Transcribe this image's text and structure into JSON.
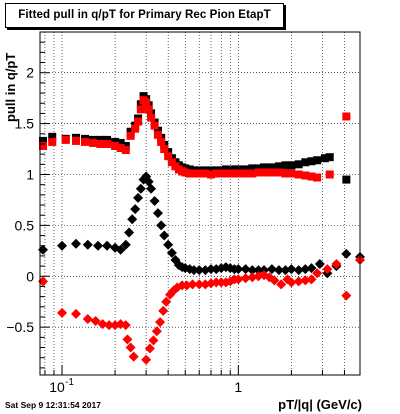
{
  "chart_data": {
    "type": "scatter",
    "title": "Fitted pull in q/pT for Primary Rec Pion EtapT",
    "xlabel": "pT/|q| (GeV/c)",
    "ylabel": "pull in q/pT",
    "x_scale": "log",
    "xlim": [
      0.075,
      4.9
    ],
    "ylim": [
      -0.97,
      2.4
    ],
    "grid": true,
    "x_tick_labels": [
      {
        "value": 0.1,
        "label": "10",
        "exp": "-1"
      },
      {
        "value": 1,
        "label": "1",
        "exp": ""
      }
    ],
    "y_ticks": [
      -0.5,
      0,
      0.5,
      1,
      1.5,
      2
    ],
    "y_tick_labels": [
      "−0.5",
      "0",
      "0.5",
      "1",
      "1.5",
      "2"
    ],
    "series": [
      {
        "color": "#000000",
        "marker": "square",
        "points": [
          [
            0.078,
            1.33
          ],
          [
            0.088,
            1.37
          ],
          [
            0.105,
            1.35
          ],
          [
            0.12,
            1.36
          ],
          [
            0.135,
            1.35
          ],
          [
            0.15,
            1.34
          ],
          [
            0.165,
            1.34
          ],
          [
            0.18,
            1.34
          ],
          [
            0.2,
            1.32
          ],
          [
            0.215,
            1.31
          ],
          [
            0.23,
            1.28
          ],
          [
            0.245,
            1.42
          ],
          [
            0.26,
            1.48
          ],
          [
            0.27,
            1.55
          ],
          [
            0.28,
            1.69
          ],
          [
            0.29,
            1.77
          ],
          [
            0.3,
            1.74
          ],
          [
            0.31,
            1.68
          ],
          [
            0.32,
            1.6
          ],
          [
            0.335,
            1.51
          ],
          [
            0.35,
            1.43
          ],
          [
            0.365,
            1.36
          ],
          [
            0.38,
            1.29
          ],
          [
            0.4,
            1.22
          ],
          [
            0.42,
            1.16
          ],
          [
            0.44,
            1.12
          ],
          [
            0.46,
            1.09
          ],
          [
            0.48,
            1.07
          ],
          [
            0.5,
            1.06
          ],
          [
            0.53,
            1.05
          ],
          [
            0.56,
            1.04
          ],
          [
            0.6,
            1.04
          ],
          [
            0.65,
            1.04
          ],
          [
            0.7,
            1.04
          ],
          [
            0.75,
            1.04
          ],
          [
            0.8,
            1.04
          ],
          [
            0.85,
            1.05
          ],
          [
            0.9,
            1.04
          ],
          [
            0.95,
            1.05
          ],
          [
            1.0,
            1.05
          ],
          [
            1.1,
            1.05
          ],
          [
            1.2,
            1.06
          ],
          [
            1.3,
            1.06
          ],
          [
            1.4,
            1.07
          ],
          [
            1.55,
            1.07
          ],
          [
            1.7,
            1.08
          ],
          [
            1.85,
            1.09
          ],
          [
            2.0,
            1.09
          ],
          [
            2.2,
            1.1
          ],
          [
            2.4,
            1.12
          ],
          [
            2.6,
            1.13
          ],
          [
            2.8,
            1.14
          ],
          [
            3.1,
            1.16
          ],
          [
            3.3,
            1.17
          ],
          [
            4.1,
            0.95
          ]
        ]
      },
      {
        "color": "#ff0000",
        "marker": "square",
        "points": [
          [
            0.078,
            1.28
          ],
          [
            0.088,
            1.32
          ],
          [
            0.105,
            1.34
          ],
          [
            0.12,
            1.33
          ],
          [
            0.135,
            1.32
          ],
          [
            0.15,
            1.31
          ],
          [
            0.165,
            1.3
          ],
          [
            0.18,
            1.3
          ],
          [
            0.2,
            1.28
          ],
          [
            0.215,
            1.26
          ],
          [
            0.23,
            1.24
          ],
          [
            0.245,
            1.38
          ],
          [
            0.26,
            1.45
          ],
          [
            0.27,
            1.52
          ],
          [
            0.28,
            1.64
          ],
          [
            0.29,
            1.73
          ],
          [
            0.3,
            1.71
          ],
          [
            0.31,
            1.64
          ],
          [
            0.32,
            1.56
          ],
          [
            0.335,
            1.48
          ],
          [
            0.35,
            1.39
          ],
          [
            0.365,
            1.32
          ],
          [
            0.38,
            1.25
          ],
          [
            0.4,
            1.18
          ],
          [
            0.42,
            1.12
          ],
          [
            0.44,
            1.08
          ],
          [
            0.46,
            1.05
          ],
          [
            0.48,
            1.03
          ],
          [
            0.5,
            1.02
          ],
          [
            0.53,
            1.01
          ],
          [
            0.56,
            1.01
          ],
          [
            0.6,
            1.01
          ],
          [
            0.65,
            1.01
          ],
          [
            0.7,
            1.0
          ],
          [
            0.75,
            1.01
          ],
          [
            0.8,
            1.01
          ],
          [
            0.85,
            1.01
          ],
          [
            0.9,
            1.01
          ],
          [
            0.95,
            1.01
          ],
          [
            1.0,
            1.01
          ],
          [
            1.1,
            1.01
          ],
          [
            1.2,
            1.01
          ],
          [
            1.3,
            1.02
          ],
          [
            1.4,
            1.02
          ],
          [
            1.55,
            1.02
          ],
          [
            1.7,
            1.02
          ],
          [
            1.85,
            1.01
          ],
          [
            2.0,
            1.01
          ],
          [
            2.2,
            1.0
          ],
          [
            2.4,
            0.99
          ],
          [
            2.6,
            0.98
          ],
          [
            2.8,
            0.97
          ],
          [
            3.3,
            1.0
          ],
          [
            4.1,
            1.57
          ]
        ]
      },
      {
        "color": "#000000",
        "marker": "diamond",
        "points": [
          [
            0.078,
            0.26
          ],
          [
            0.1,
            0.3
          ],
          [
            0.12,
            0.32
          ],
          [
            0.14,
            0.31
          ],
          [
            0.16,
            0.3
          ],
          [
            0.18,
            0.3
          ],
          [
            0.2,
            0.28
          ],
          [
            0.215,
            0.26
          ],
          [
            0.23,
            0.31
          ],
          [
            0.24,
            0.43
          ],
          [
            0.25,
            0.56
          ],
          [
            0.26,
            0.66
          ],
          [
            0.27,
            0.77
          ],
          [
            0.28,
            0.86
          ],
          [
            0.29,
            0.95
          ],
          [
            0.3,
            0.98
          ],
          [
            0.31,
            0.93
          ],
          [
            0.32,
            0.86
          ],
          [
            0.335,
            0.74
          ],
          [
            0.35,
            0.62
          ],
          [
            0.365,
            0.5
          ],
          [
            0.38,
            0.4
          ],
          [
            0.4,
            0.31
          ],
          [
            0.42,
            0.23
          ],
          [
            0.44,
            0.16
          ],
          [
            0.46,
            0.11
          ],
          [
            0.48,
            0.09
          ],
          [
            0.5,
            0.08
          ],
          [
            0.53,
            0.07
          ],
          [
            0.56,
            0.06
          ],
          [
            0.6,
            0.06
          ],
          [
            0.65,
            0.06
          ],
          [
            0.7,
            0.07
          ],
          [
            0.75,
            0.07
          ],
          [
            0.8,
            0.08
          ],
          [
            0.85,
            0.09
          ],
          [
            0.9,
            0.08
          ],
          [
            0.95,
            0.07
          ],
          [
            1.0,
            0.07
          ],
          [
            1.1,
            0.07
          ],
          [
            1.2,
            0.06
          ],
          [
            1.3,
            0.06
          ],
          [
            1.4,
            0.06
          ],
          [
            1.55,
            0.07
          ],
          [
            1.7,
            0.06
          ],
          [
            1.85,
            0.06
          ],
          [
            2.0,
            0.07
          ],
          [
            2.2,
            0.06
          ],
          [
            2.4,
            0.07
          ],
          [
            2.6,
            0.08
          ],
          [
            2.9,
            0.12
          ],
          [
            3.2,
            0.03
          ],
          [
            3.6,
            0.1
          ],
          [
            4.1,
            0.22
          ],
          [
            4.9,
            0.19
          ]
        ]
      },
      {
        "color": "#ff0000",
        "marker": "diamond",
        "points": [
          [
            0.078,
            -0.05
          ],
          [
            0.1,
            -0.36
          ],
          [
            0.12,
            -0.37
          ],
          [
            0.14,
            -0.42
          ],
          [
            0.155,
            -0.44
          ],
          [
            0.17,
            -0.47
          ],
          [
            0.185,
            -0.48
          ],
          [
            0.2,
            -0.48
          ],
          [
            0.215,
            -0.47
          ],
          [
            0.23,
            -0.48
          ],
          [
            0.235,
            -0.62
          ],
          [
            0.245,
            -0.7
          ],
          [
            0.255,
            -0.79
          ],
          [
            0.3,
            -0.82
          ],
          [
            0.315,
            -0.71
          ],
          [
            0.33,
            -0.63
          ],
          [
            0.345,
            -0.54
          ],
          [
            0.36,
            -0.45
          ],
          [
            0.375,
            -0.34
          ],
          [
            0.39,
            -0.25
          ],
          [
            0.41,
            -0.18
          ],
          [
            0.43,
            -0.14
          ],
          [
            0.45,
            -0.11
          ],
          [
            0.48,
            -0.09
          ],
          [
            0.51,
            -0.09
          ],
          [
            0.55,
            -0.08
          ],
          [
            0.6,
            -0.08
          ],
          [
            0.65,
            -0.08
          ],
          [
            0.7,
            -0.07
          ],
          [
            0.75,
            -0.06
          ],
          [
            0.8,
            -0.06
          ],
          [
            0.85,
            -0.06
          ],
          [
            0.9,
            -0.05
          ],
          [
            0.95,
            -0.03
          ],
          [
            1.0,
            -0.03
          ],
          [
            1.1,
            -0.02
          ],
          [
            1.2,
            -0.01
          ],
          [
            1.3,
            0.0
          ],
          [
            1.4,
            0.01
          ],
          [
            1.5,
            -0.01
          ],
          [
            1.6,
            -0.04
          ],
          [
            1.75,
            -0.08
          ],
          [
            1.9,
            -0.03
          ],
          [
            2.0,
            -0.06
          ],
          [
            2.2,
            -0.05
          ],
          [
            2.4,
            -0.04
          ],
          [
            2.6,
            -0.03
          ],
          [
            2.8,
            0.03
          ],
          [
            3.2,
            0.07
          ],
          [
            3.6,
            0.12
          ],
          [
            4.1,
            -0.19
          ],
          [
            4.9,
            0.16
          ]
        ]
      }
    ]
  },
  "footer": {
    "timestamp": "Sat Sep  9 12:31:54 2017"
  }
}
